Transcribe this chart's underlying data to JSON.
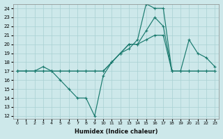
{
  "xlabel": "Humidex (Indice chaleur)",
  "xlim_min": -0.5,
  "xlim_max": 23.5,
  "ylim_min": 11.7,
  "ylim_max": 24.5,
  "yticks": [
    12,
    13,
    14,
    15,
    16,
    17,
    18,
    19,
    20,
    21,
    22,
    23,
    24
  ],
  "xticks": [
    0,
    1,
    2,
    3,
    4,
    5,
    6,
    7,
    8,
    9,
    10,
    11,
    12,
    13,
    14,
    15,
    16,
    17,
    18,
    19,
    20,
    21,
    22,
    23
  ],
  "bg_color": "#cde8ea",
  "grid_color": "#a8d0d2",
  "line_color": "#1a7a6e",
  "line1_x": [
    0,
    1,
    2,
    3,
    4,
    5,
    6,
    7,
    8,
    9,
    10,
    11,
    12,
    13,
    14,
    15,
    16,
    17,
    18,
    19,
    20,
    21,
    22,
    23
  ],
  "line1_y": [
    17,
    17,
    17,
    17.5,
    17,
    16,
    15,
    14,
    14,
    12,
    16.5,
    18,
    19,
    19.5,
    20.5,
    24.5,
    24,
    24,
    17,
    17,
    17,
    17,
    17,
    17
  ],
  "line2_x": [
    0,
    1,
    2,
    3,
    4,
    5,
    6,
    7,
    8,
    9,
    10,
    11,
    12,
    13,
    14,
    15,
    16,
    17,
    18,
    19,
    20,
    21,
    22,
    23
  ],
  "line2_y": [
    17,
    17,
    17,
    17,
    17,
    17,
    17,
    17,
    17,
    17,
    17,
    18,
    19,
    20,
    20,
    21.5,
    23,
    22,
    17,
    17,
    20.5,
    19,
    18.5,
    17.5
  ],
  "line3_x": [
    0,
    1,
    2,
    3,
    4,
    5,
    6,
    7,
    8,
    9,
    10,
    11,
    12,
    13,
    14,
    15,
    16,
    17,
    18,
    19,
    20,
    21,
    22,
    23
  ],
  "line3_y": [
    17,
    17,
    17,
    17,
    17,
    17,
    17,
    17,
    17,
    17,
    17,
    18,
    19,
    20,
    20,
    20.5,
    21,
    21,
    17,
    17,
    17,
    17,
    17,
    17
  ]
}
